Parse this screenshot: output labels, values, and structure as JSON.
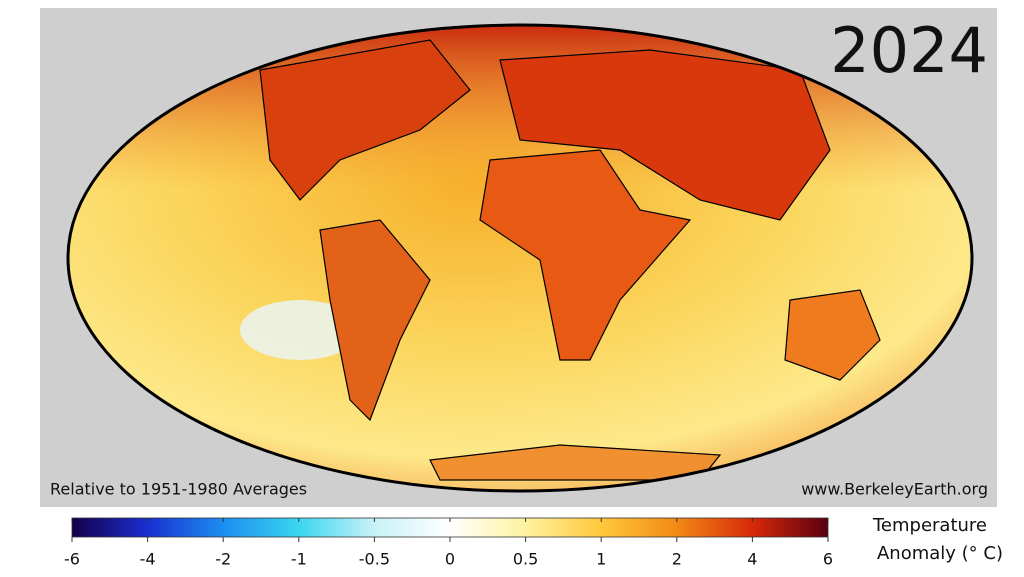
{
  "map": {
    "year": "2024",
    "baseline_note": "Relative to 1951-1980 Averages",
    "source": "www.BerkeleyEarth.org"
  },
  "colorbar": {
    "ticks": [
      -6,
      -4,
      -2,
      -1,
      -0.5,
      0,
      0.5,
      1,
      2,
      4,
      6
    ],
    "colors": [
      "#14004a",
      "#1a2fd0",
      "#1c8ef0",
      "#3ad6f0",
      "#c8f2f8",
      "#ffffff",
      "#fff2a0",
      "#ffc83c",
      "#f28a14",
      "#d8280a",
      "#5a0010"
    ],
    "title_line1": "Temperature",
    "title_line2": "Anomaly (° C)"
  }
}
